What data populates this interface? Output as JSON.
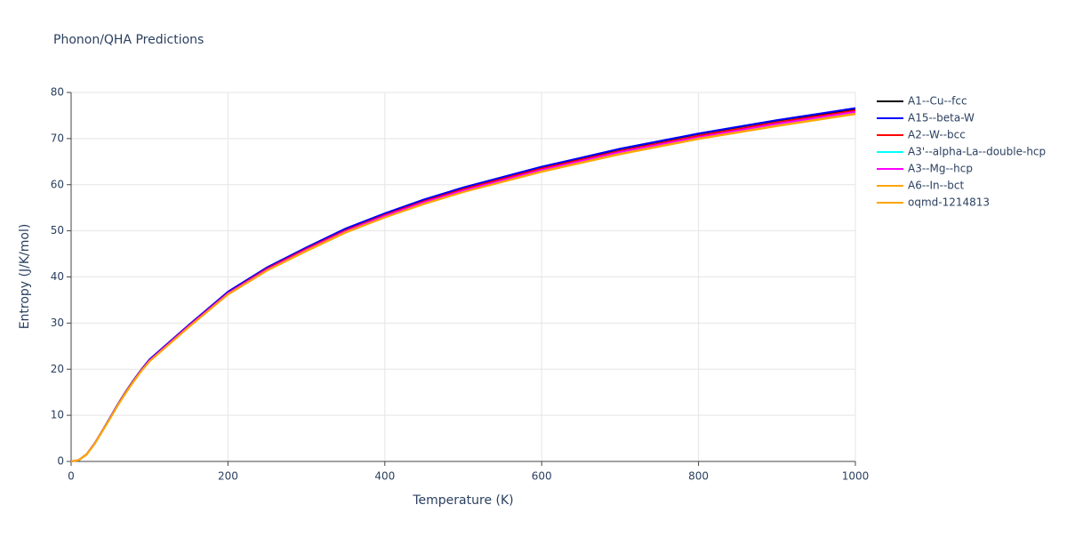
{
  "chart_data": {
    "type": "line",
    "title": "Phonon/QHA Predictions",
    "x_label": "Temperature (K)",
    "y_label": "Entropy (J/K/mol)",
    "x": [
      0,
      10,
      20,
      30,
      40,
      50,
      60,
      70,
      80,
      90,
      100,
      150,
      200,
      250,
      300,
      350,
      400,
      450,
      500,
      600,
      700,
      800,
      900,
      1000
    ],
    "series": [
      {
        "name": "A1--Cu--fcc",
        "color": "#000000",
        "values": [
          0,
          0.3,
          1.6,
          3.9,
          6.7,
          9.6,
          12.5,
          15.2,
          17.7,
          20.0,
          22.1,
          29.5,
          36.7,
          42.0,
          46.3,
          50.4,
          53.7,
          56.7,
          59.3,
          63.8,
          67.7,
          71.0,
          73.9,
          76.4
        ]
      },
      {
        "name": "A15--beta-W",
        "color": "#0000ff",
        "values": [
          0,
          0.3,
          1.6,
          3.9,
          6.7,
          9.6,
          12.5,
          15.2,
          17.7,
          20.0,
          22.1,
          29.6,
          36.8,
          42.1,
          46.4,
          50.5,
          53.8,
          56.8,
          59.4,
          63.9,
          67.8,
          71.1,
          74.0,
          76.6
        ]
      },
      {
        "name": "A2--W--bcc",
        "color": "#ff0000",
        "values": [
          0,
          0.3,
          1.6,
          3.9,
          6.7,
          9.5,
          12.4,
          15.1,
          17.6,
          19.9,
          21.9,
          29.4,
          36.5,
          41.8,
          46.1,
          50.1,
          53.4,
          56.4,
          59.0,
          63.5,
          67.3,
          70.6,
          73.5,
          76.1
        ]
      },
      {
        "name": "A3'--alpha-La--double-hcp",
        "color": "#00ffff",
        "values": [
          0,
          0.3,
          1.6,
          3.9,
          6.6,
          9.5,
          12.3,
          15.0,
          17.5,
          19.8,
          21.8,
          29.2,
          36.4,
          41.6,
          45.8,
          49.9,
          53.2,
          56.1,
          58.7,
          63.1,
          67.0,
          70.2,
          73.1,
          75.7
        ]
      },
      {
        "name": "A3--Mg--hcp",
        "color": "#ff00ff",
        "values": [
          0,
          0.3,
          1.6,
          3.9,
          6.6,
          9.5,
          12.4,
          15.0,
          17.5,
          19.8,
          21.9,
          29.3,
          36.4,
          41.6,
          45.9,
          49.9,
          53.2,
          56.2,
          58.7,
          63.2,
          67.1,
          70.3,
          73.2,
          75.8
        ]
      },
      {
        "name": "A6--In--bct",
        "color": "#ffa500",
        "values": [
          0,
          0.3,
          1.6,
          3.8,
          6.6,
          9.4,
          12.3,
          15.0,
          17.4,
          19.7,
          21.7,
          29.1,
          36.2,
          41.4,
          45.7,
          49.7,
          52.9,
          55.9,
          58.4,
          62.9,
          66.7,
          70.0,
          72.8,
          75.4
        ]
      },
      {
        "name": "oqmd-1214813",
        "color": "#ffa500",
        "values": [
          0,
          0.3,
          1.5,
          3.8,
          6.6,
          9.4,
          12.3,
          14.9,
          17.4,
          19.7,
          21.7,
          29.1,
          36.2,
          41.4,
          45.6,
          49.6,
          52.9,
          55.8,
          58.4,
          62.8,
          66.6,
          69.9,
          72.7,
          75.3
        ]
      }
    ],
    "xlim": [
      0,
      1000
    ],
    "xticks": [
      0,
      200,
      400,
      600,
      800,
      1000
    ],
    "ylim": [
      0,
      80
    ],
    "yticks": [
      0,
      10,
      20,
      30,
      40,
      50,
      60,
      70,
      80
    ],
    "grid": true,
    "legend": "right"
  }
}
